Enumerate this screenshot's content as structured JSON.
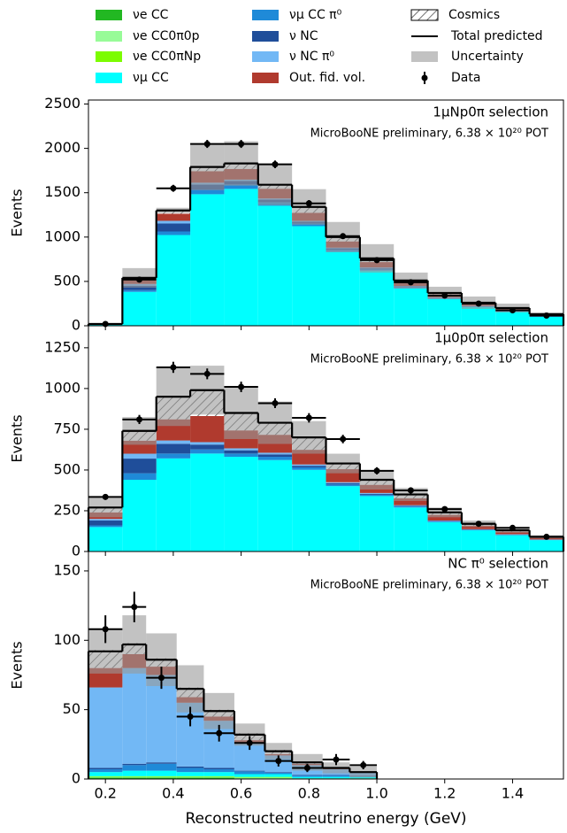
{
  "chart_data": [
    {
      "type": "histogram",
      "title": "1μNp0π selection",
      "subtitle": "MicroBooNE preliminary, 6.38 × 10²⁰ POT",
      "ylabel": "Events",
      "bins": [
        0.15,
        0.25,
        0.35,
        0.45,
        0.55,
        0.65,
        0.75,
        0.85,
        0.95,
        1.05,
        1.15,
        1.25,
        1.35,
        1.45,
        1.55
      ],
      "xlim": [
        0.15,
        1.55
      ],
      "ylim": [
        0,
        2545
      ],
      "yticks": [
        0,
        500,
        1000,
        1500,
        2000,
        2500
      ],
      "series": [
        {
          "name": "νe CC",
          "color": "#22b822",
          "values": [
            0,
            1,
            2,
            2,
            2,
            2,
            2,
            2,
            1,
            1,
            1,
            1,
            0,
            0
          ]
        },
        {
          "name": "νe CC0π0p",
          "color": "#98fb98",
          "values": [
            0,
            0,
            0,
            0,
            0,
            0,
            0,
            0,
            0,
            0,
            0,
            0,
            0,
            0
          ]
        },
        {
          "name": "νe CC0πNp",
          "color": "#7cfc00",
          "values": [
            0,
            1,
            1,
            1,
            1,
            1,
            1,
            1,
            1,
            1,
            0,
            0,
            0,
            0
          ]
        },
        {
          "name": "νμ CC",
          "color": "#00ffff",
          "values": [
            10,
            380,
            1020,
            1480,
            1540,
            1350,
            1120,
            830,
            620,
            420,
            300,
            210,
            160,
            100
          ]
        },
        {
          "name": "νμ CC π⁰",
          "color": "#1f8ad8",
          "values": [
            1,
            20,
            40,
            50,
            50,
            40,
            30,
            25,
            20,
            15,
            10,
            8,
            6,
            4
          ]
        },
        {
          "name": "ν NC",
          "color": "#1f4e9a",
          "values": [
            2,
            50,
            90,
            60,
            40,
            30,
            20,
            15,
            10,
            8,
            6,
            4,
            3,
            2
          ]
        },
        {
          "name": "ν NC π⁰",
          "color": "#72b8f5",
          "values": [
            1,
            20,
            30,
            20,
            15,
            12,
            10,
            8,
            6,
            4,
            3,
            2,
            2,
            1
          ]
        },
        {
          "name": "Out. fid. vol.",
          "color": "#b03a2e",
          "values": [
            3,
            40,
            80,
            130,
            120,
            110,
            90,
            70,
            60,
            40,
            35,
            25,
            20,
            15
          ]
        },
        {
          "name": "Cosmics",
          "color": "#ffffff",
          "hatch": true,
          "values": [
            3,
            30,
            40,
            50,
            65,
            48,
            70,
            52,
            44,
            23,
            16,
            11,
            9,
            8
          ]
        }
      ],
      "total": {
        "name": "Total predicted",
        "color": "#000000",
        "values": [
          20,
          540,
          1300,
          1790,
          1830,
          1590,
          1340,
          1000,
          760,
          510,
          370,
          260,
          200,
          130
        ]
      },
      "uncertainty": {
        "name": "Uncertainty",
        "color": "#999999",
        "values": [
          5,
          110,
          30,
          260,
          250,
          230,
          200,
          170,
          160,
          90,
          70,
          70,
          50,
          20
        ]
      },
      "data": {
        "name": "Data",
        "color": "#000000",
        "values": [
          20,
          520,
          1550,
          2050,
          2050,
          1820,
          1380,
          1010,
          740,
          490,
          340,
          250,
          175,
          115
        ],
        "errors": [
          4,
          23,
          39,
          45,
          45,
          43,
          37,
          32,
          27,
          22,
          18,
          16,
          13,
          11
        ]
      }
    },
    {
      "type": "histogram",
      "title": "1μ0p0π selection",
      "subtitle": "MicroBooNE preliminary, 6.38 × 10²⁰ POT",
      "ylabel": "Events",
      "bins": [
        0.15,
        0.25,
        0.35,
        0.45,
        0.55,
        0.65,
        0.75,
        0.85,
        0.95,
        1.05,
        1.15,
        1.25,
        1.35,
        1.45,
        1.55
      ],
      "xlim": [
        0.15,
        1.55
      ],
      "ylim": [
        0,
        1385
      ],
      "yticks": [
        0,
        250,
        500,
        750,
        1000,
        1250
      ],
      "series": [
        {
          "values": [
            0,
            0,
            1,
            1,
            1,
            1,
            1,
            1,
            0,
            0,
            0,
            0,
            0,
            0
          ]
        },
        {
          "values": [
            0,
            0,
            0,
            0,
            0,
            0,
            0,
            0,
            0,
            0,
            0,
            0,
            0,
            0
          ]
        },
        {
          "values": [
            0,
            0,
            0,
            0,
            0,
            0,
            0,
            0,
            0,
            0,
            0,
            0,
            0,
            0
          ]
        },
        {
          "values": [
            150,
            440,
            570,
            600,
            580,
            560,
            500,
            400,
            340,
            270,
            180,
            130,
            100,
            70
          ]
        },
        {
          "values": [
            10,
            40,
            30,
            25,
            20,
            20,
            15,
            10,
            8,
            6,
            4,
            3,
            2,
            2
          ]
        },
        {
          "values": [
            30,
            90,
            60,
            30,
            20,
            15,
            10,
            8,
            6,
            4,
            3,
            2,
            2,
            1
          ]
        },
        {
          "values": [
            10,
            30,
            20,
            15,
            12,
            10,
            8,
            6,
            5,
            4,
            3,
            2,
            2,
            1
          ]
        },
        {
          "values": [
            40,
            80,
            130,
            160,
            110,
            110,
            90,
            80,
            50,
            42,
            35,
            22,
            16,
            10
          ]
        },
        {
          "values": [
            30,
            60,
            140,
            160,
            108,
            75,
            77,
            36,
            31,
            24,
            15,
            11,
            8,
            6
          ]
        }
      ],
      "total": {
        "values": [
          270,
          740,
          950,
          990,
          850,
          790,
          700,
          540,
          440,
          350,
          240,
          170,
          130,
          90
        ]
      },
      "uncertainty": {
        "values": [
          60,
          85,
          180,
          150,
          160,
          130,
          100,
          60,
          60,
          40,
          30,
          20,
          15,
          10
        ]
      },
      "data": {
        "values": [
          335,
          810,
          1130,
          1090,
          1010,
          910,
          820,
          690,
          495,
          375,
          260,
          170,
          145,
          90
        ],
        "errors": [
          18,
          28,
          34,
          33,
          32,
          30,
          29,
          26,
          22,
          19,
          16,
          13,
          12,
          9
        ]
      }
    },
    {
      "type": "histogram",
      "title": "NC π⁰ selection",
      "subtitle": "MicroBooNE preliminary, 6.38 × 10²⁰ POT",
      "ylabel": "Events",
      "xlabel": "Reconstructed neutrino energy (GeV)",
      "bins": [
        0.15,
        0.25,
        0.32,
        0.41,
        0.49,
        0.58,
        0.67,
        0.75,
        0.84,
        0.92,
        1.0
      ],
      "xlim": [
        0.15,
        1.55
      ],
      "ylim": [
        0,
        164
      ],
      "yticks": [
        0,
        50,
        100,
        150
      ],
      "xticks": [
        0.2,
        0.4,
        0.6,
        0.8,
        {
          "value": 1,
          "label": "1.0"
        },
        1.2,
        1.4
      ],
      "series": [
        {
          "values": [
            1,
            1,
            1,
            1,
            1,
            0.5,
            0.5,
            0.5,
            0.5,
            0.5
          ]
        },
        {
          "values": [
            0.5,
            0.5,
            0.5,
            0.5,
            0.5,
            0.5,
            0.5,
            0,
            0,
            0
          ]
        },
        {
          "values": [
            0.5,
            0.5,
            0.5,
            0.5,
            0.5,
            0.5,
            0.5,
            0,
            0,
            0
          ]
        },
        {
          "values": [
            3,
            4,
            4,
            3,
            3,
            2,
            2,
            1,
            1,
            1
          ]
        },
        {
          "values": [
            2,
            4,
            5,
            3,
            2,
            2,
            1,
            1,
            1,
            0.5
          ]
        },
        {
          "values": [
            1,
            1,
            1,
            1,
            1,
            0.5,
            0.5,
            0.5,
            0.5,
            0.5
          ]
        },
        {
          "values": [
            58,
            69,
            63,
            46,
            34,
            20,
            12,
            7,
            4,
            2
          ]
        },
        {
          "values": [
            14,
            10,
            6,
            4,
            3,
            2,
            1,
            1,
            0.5,
            0.5
          ]
        },
        {
          "values": [
            13,
            8,
            6,
            7,
            5,
            5,
            3,
            1,
            0.5,
            0
          ]
        }
      ],
      "total": {
        "values": [
          92,
          97,
          86,
          65,
          49,
          32,
          20,
          12,
          8,
          5
        ]
      },
      "uncertainty": {
        "values": [
          16,
          21,
          19,
          17,
          13,
          8,
          6,
          6,
          4,
          4
        ]
      },
      "data": {
        "values": [
          108,
          124,
          73,
          45,
          33,
          26,
          13,
          8,
          14,
          10
        ],
        "errors": [
          10,
          11,
          8,
          7,
          6,
          5,
          4,
          3,
          4,
          3
        ]
      }
    }
  ]
}
